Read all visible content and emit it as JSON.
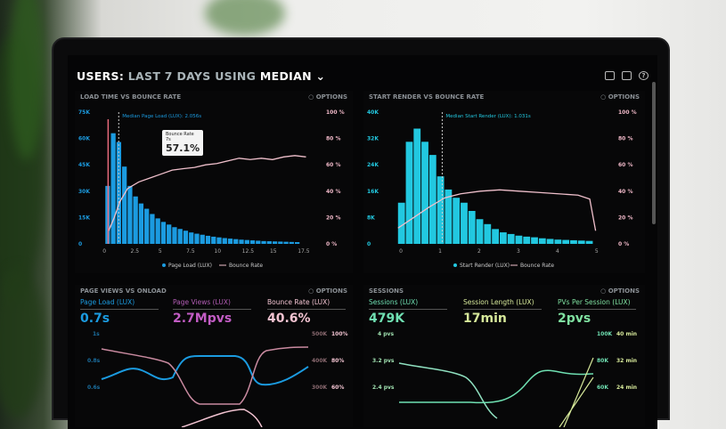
{
  "header": {
    "prefix": "USERS:",
    "range": "LAST 7 DAYS",
    "using": "USING",
    "stat": "MEDIAN",
    "icons": [
      "monitor-icon",
      "share-icon",
      "help-icon"
    ]
  },
  "options_label": "OPTIONS",
  "colors": {
    "blue": "#1b9be0",
    "cyan": "#22c8e0",
    "pink": "#e8a4b8",
    "magenta": "#c25cc4",
    "green": "#6fe0b2",
    "yellow": "#d6e89a"
  },
  "chart_data": [
    {
      "type": "bar",
      "title": "LOAD TIME VS BOUNCE RATE",
      "annotation": "Median Page Load (LUX): 2.056s",
      "tooltip": {
        "label": "Bounce Rate",
        "sub": "7s",
        "value": "57.1%"
      },
      "y_ticks": [
        "75K",
        "60K",
        "45K",
        "30K",
        "15K",
        "0"
      ],
      "y2_ticks": [
        "100 %",
        "80 %",
        "60 %",
        "40 %",
        "20 %",
        "0 %"
      ],
      "x_ticks": [
        "0",
        "2.5",
        "5",
        "7.5",
        "10",
        "12.5",
        "15",
        "17.5"
      ],
      "ylim": [
        0,
        75000
      ],
      "xlim": [
        -0.5,
        19
      ],
      "series": [
        {
          "name": "Page Load (LUX)",
          "type": "bar",
          "x_start": 0,
          "x_step": 0.5,
          "values": [
            33000,
            63000,
            58000,
            44000,
            33000,
            27000,
            23000,
            20000,
            17000,
            14500,
            12500,
            11000,
            9500,
            8500,
            7500,
            6500,
            5800,
            5200,
            4600,
            4100,
            3700,
            3300,
            3000,
            2700,
            2400,
            2200,
            2000,
            1800,
            1600,
            1500,
            1400,
            1300,
            1200,
            1100,
            1000
          ]
        },
        {
          "name": "Bounce Rate",
          "type": "line",
          "x": [
            0.3,
            0.8,
            1.3,
            2,
            3,
            4,
            5,
            6,
            7,
            8,
            9,
            10,
            11,
            12,
            13,
            14,
            15,
            16,
            17,
            18
          ],
          "values": [
            10,
            20,
            32,
            42,
            47,
            50,
            53,
            56,
            57.1,
            58,
            60,
            61,
            63,
            65,
            64,
            65,
            64,
            66,
            67,
            66
          ]
        }
      ],
      "legend": [
        "Page Load (LUX)",
        "Bounce Rate"
      ]
    },
    {
      "type": "bar",
      "title": "START RENDER VS BOUNCE RATE",
      "annotation": "Median Start Render (LUX): 1.031s",
      "y_ticks": [
        "40K",
        "32K",
        "24K",
        "16K",
        "8K",
        "0"
      ],
      "y2_ticks": [
        "100 %",
        "80 %",
        "60 %",
        "40 %",
        "20 %",
        "0 %"
      ],
      "x_ticks": [
        "0",
        "1",
        "2",
        "3",
        "4",
        "5"
      ],
      "ylim": [
        0,
        40000
      ],
      "xlim": [
        -0.3,
        5.3
      ],
      "series": [
        {
          "name": "Start Render (LUX)",
          "type": "bar",
          "x_start": -0.1,
          "x_step": 0.2,
          "values": [
            12500,
            31000,
            35000,
            31000,
            27000,
            20500,
            16500,
            14000,
            12500,
            10000,
            7500,
            6000,
            4500,
            3500,
            3000,
            2500,
            2200,
            2000,
            1700,
            1500,
            1300,
            1200,
            1100,
            1000,
            900
          ]
        },
        {
          "name": "Bounce Rate",
          "type": "line",
          "x": [
            -0.1,
            0.3,
            0.7,
            1.1,
            1.5,
            2,
            2.5,
            3,
            3.5,
            4,
            4.5,
            4.8,
            4.95
          ],
          "values": [
            12,
            20,
            28,
            35,
            38,
            40,
            41,
            40,
            39,
            38,
            37,
            34,
            10
          ]
        }
      ],
      "legend": [
        "Start Render (LUX)",
        "Bounce Rate"
      ]
    }
  ],
  "pageviews": {
    "title": "PAGE VIEWS VS ONLOAD",
    "kpis": [
      {
        "label": "Page Load (LUX)",
        "value": "0.7s"
      },
      {
        "label": "Page Views (LUX)",
        "value": "2.7Mpvs"
      },
      {
        "label": "Bounce Rate (LUX)",
        "value": "40.6%"
      }
    ],
    "y_ticks": [
      "1s",
      "0.8s",
      "0.6s"
    ],
    "y2_ticks": [
      "500K",
      "400K",
      "300K"
    ],
    "y3_ticks": [
      "100%",
      "80%",
      "60%"
    ]
  },
  "sessions": {
    "title": "SESSIONS",
    "kpis": [
      {
        "label": "Sessions (LUX)",
        "value": "479K"
      },
      {
        "label": "Session Length (LUX)",
        "value": "17min"
      },
      {
        "label": "PVs Per Session (LUX)",
        "value": "2pvs"
      }
    ],
    "y_ticks": [
      "4 pvs",
      "3.2 pvs",
      "2.4 pvs"
    ],
    "y2_ticks": [
      "100K",
      "80K",
      "60K"
    ],
    "y3_ticks": [
      "40 min",
      "32 min",
      "24 min"
    ]
  }
}
